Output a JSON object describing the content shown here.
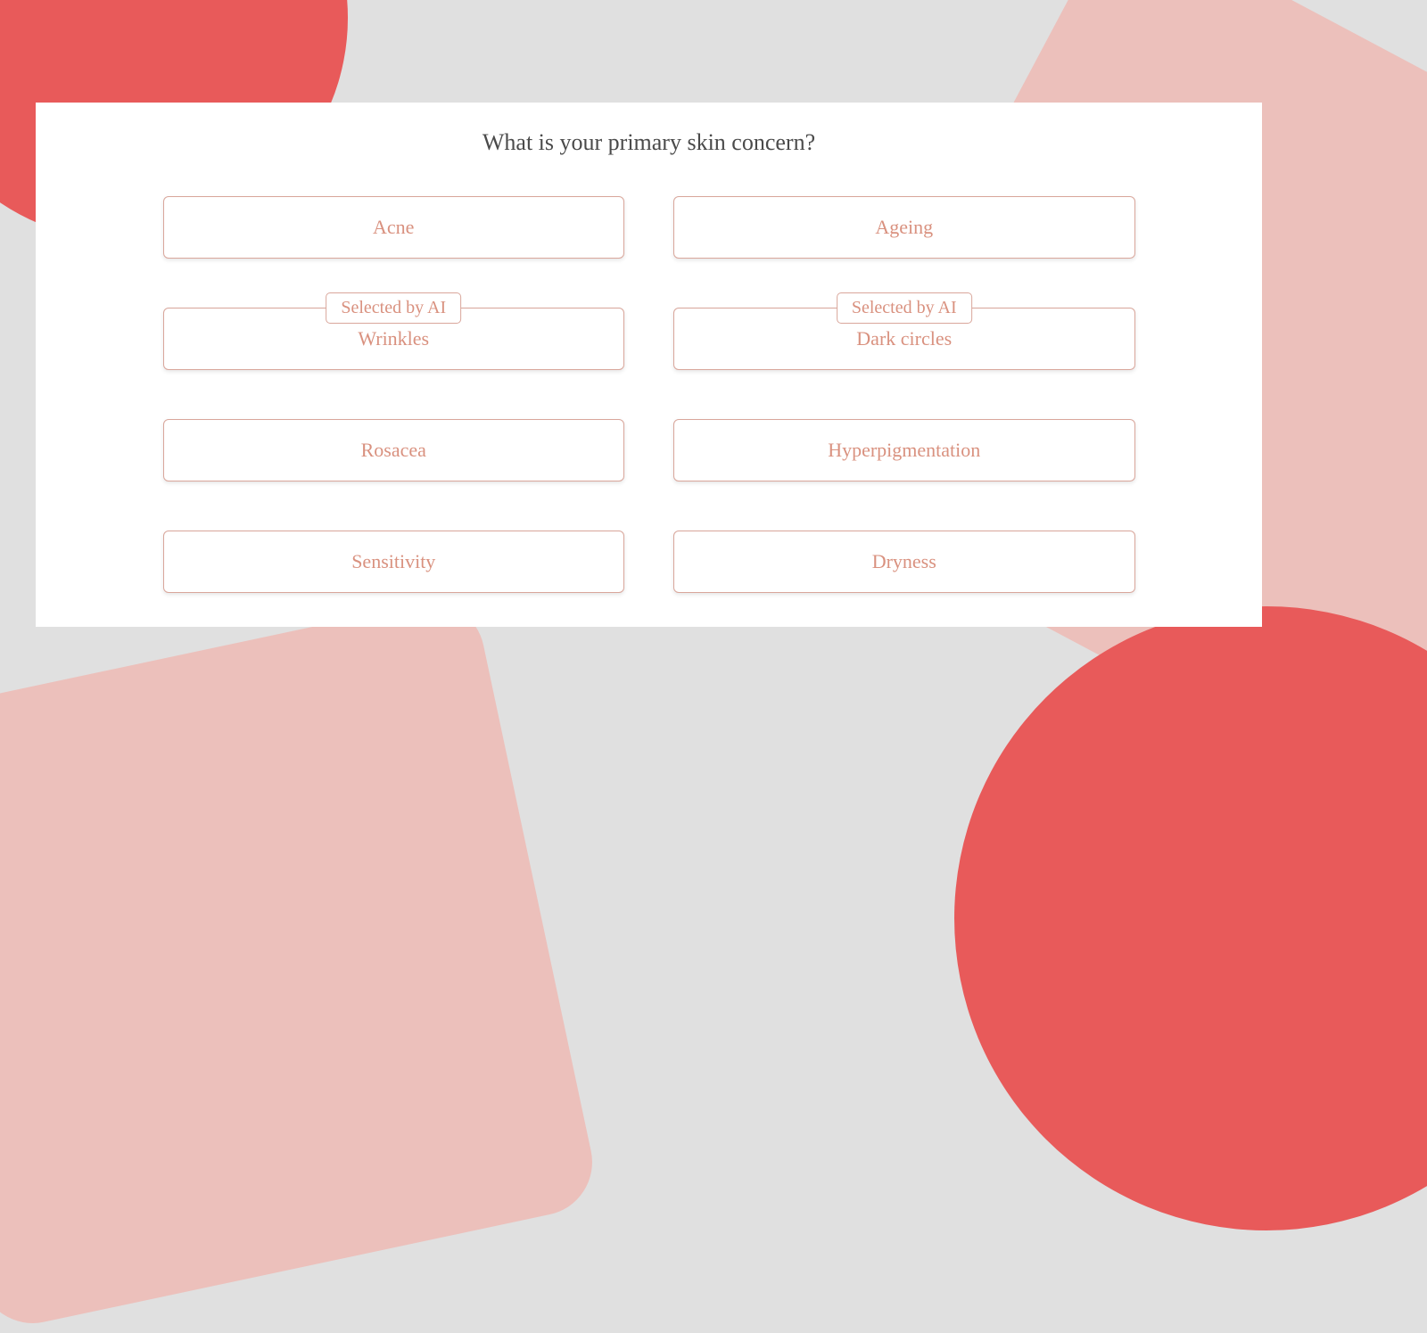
{
  "colors": {
    "background": "#e0e0e0",
    "accent_red": "#e85a5a",
    "accent_pink": "#ecc0bb",
    "card_bg": "#ffffff",
    "border_color": "#d9a69b",
    "text_color": "#d9917f",
    "title_color": "#4a4a4a"
  },
  "question": {
    "title": "What is your primary skin concern?"
  },
  "ai_badge_label": "Selected by AI",
  "options": [
    {
      "label": "Acne",
      "ai_selected": false
    },
    {
      "label": "Ageing",
      "ai_selected": false
    },
    {
      "label": "Wrinkles",
      "ai_selected": true
    },
    {
      "label": "Dark circles",
      "ai_selected": true
    },
    {
      "label": "Rosacea",
      "ai_selected": false
    },
    {
      "label": "Hyperpigmentation",
      "ai_selected": false
    },
    {
      "label": "Sensitivity",
      "ai_selected": false
    },
    {
      "label": "Dryness",
      "ai_selected": false
    }
  ]
}
